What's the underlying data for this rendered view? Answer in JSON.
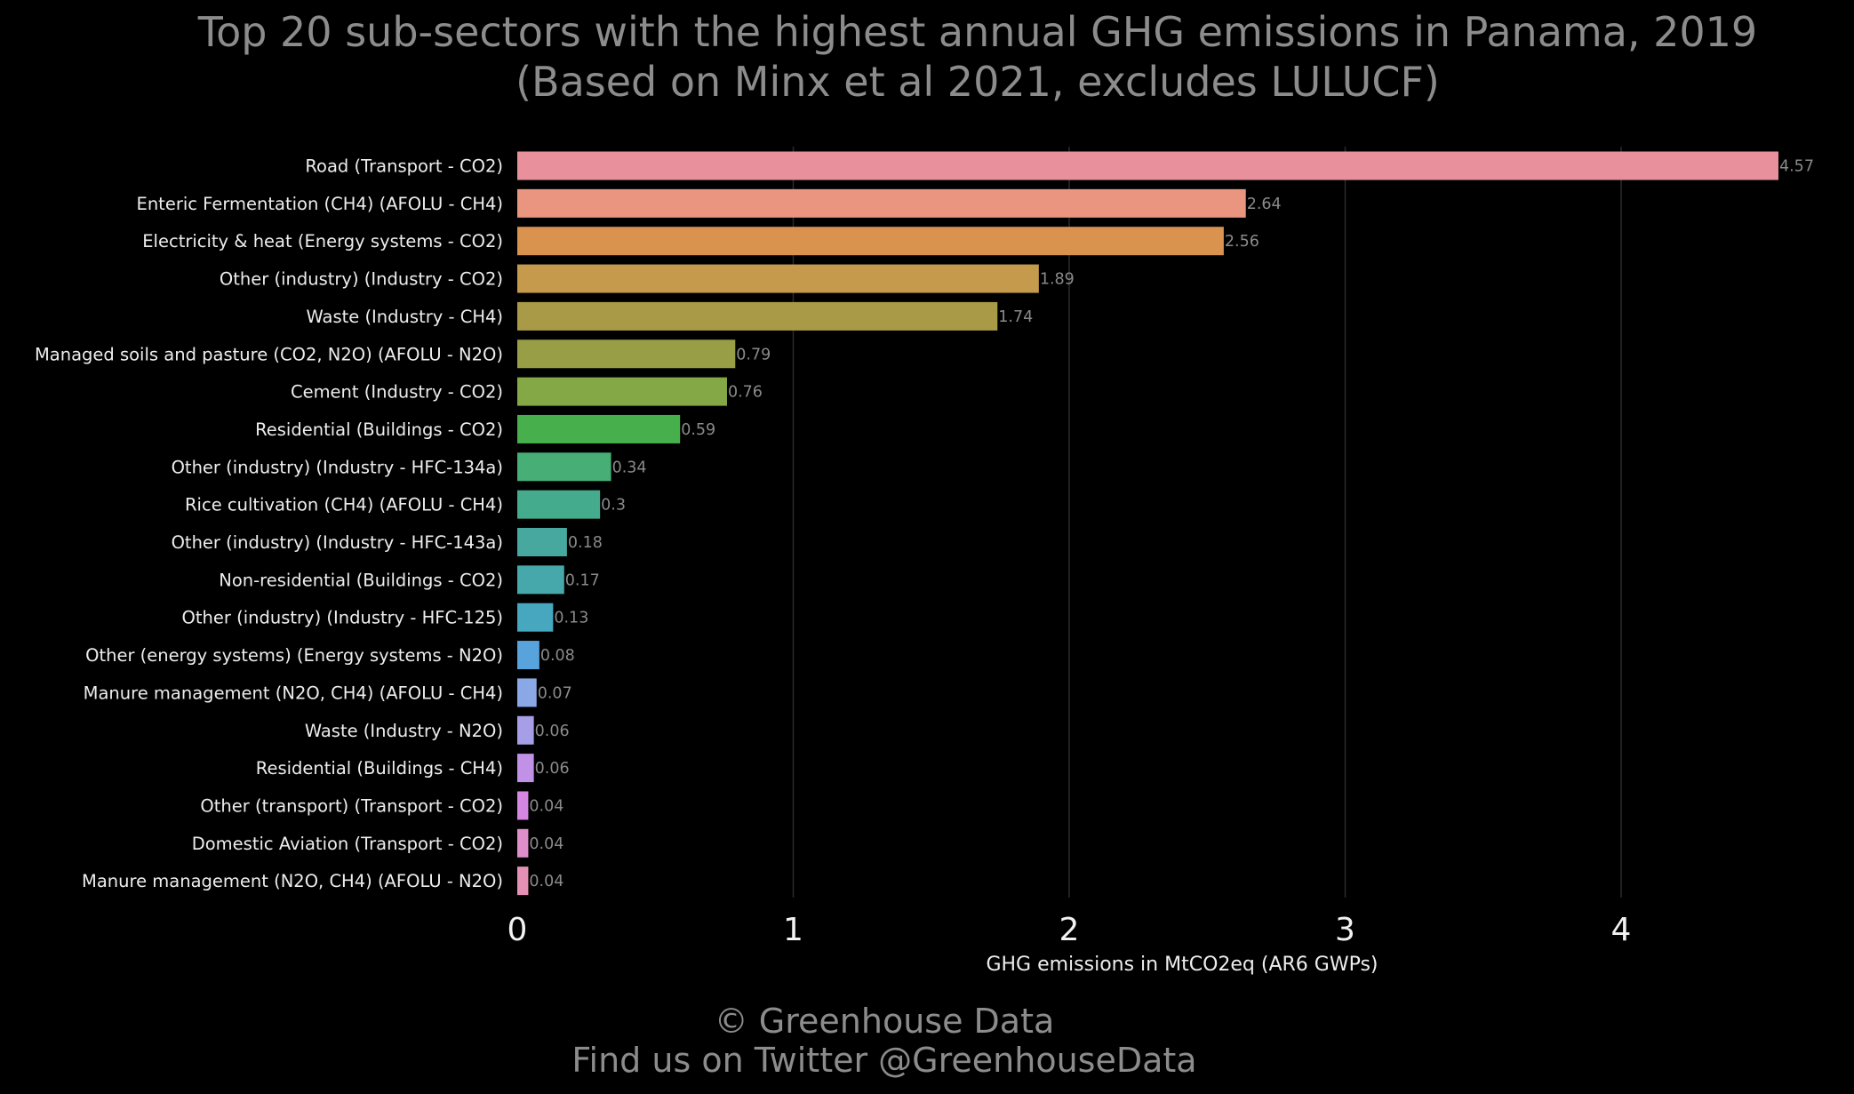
{
  "chart_data": {
    "type": "bar",
    "orientation": "horizontal",
    "title": "Top 20 sub-sectors with the highest annual GHG emissions in Panama, 2019",
    "subtitle": "(Based on Minx et al 2021, excludes LULUCF)",
    "xlabel": "GHG emissions in MtCO2eq (AR6 GWPs)",
    "ylabel": "",
    "xlim": [
      0,
      4.75
    ],
    "xticks": [
      0,
      1,
      2,
      3,
      4
    ],
    "grid": "vertical",
    "categories": [
      "Road (Transport - CO2)",
      "Enteric Fermentation (CH4) (AFOLU - CH4)",
      "Electricity & heat (Energy systems - CO2)",
      "Other (industry) (Industry - CO2)",
      "Waste (Industry - CH4)",
      "Managed soils and pasture (CO2, N2O) (AFOLU - N2O)",
      "Cement (Industry - CO2)",
      "Residential (Buildings - CO2)",
      "Other (industry) (Industry - HFC-134a)",
      "Rice cultivation (CH4) (AFOLU - CH4)",
      "Other (industry) (Industry - HFC-143a)",
      "Non-residential (Buildings - CO2)",
      "Other (industry) (Industry - HFC-125)",
      "Other (energy systems) (Energy systems - N2O)",
      "Manure management (N2O, CH4) (AFOLU - CH4)",
      "Waste (Industry - N2O)",
      "Residential (Buildings - CH4)",
      "Other (transport) (Transport - CO2)",
      "Domestic Aviation (Transport - CO2)",
      "Manure management (N2O, CH4) (AFOLU - N2O)"
    ],
    "values": [
      4.57,
      2.64,
      2.56,
      1.89,
      1.74,
      0.79,
      0.76,
      0.59,
      0.34,
      0.3,
      0.18,
      0.17,
      0.13,
      0.08,
      0.07,
      0.06,
      0.06,
      0.04,
      0.04,
      0.04
    ],
    "value_labels": [
      "4.57",
      "2.64",
      "2.56",
      "1.89",
      "1.74",
      "0.79",
      "0.76",
      "0.59",
      "0.34",
      "0.3",
      "0.18",
      "0.17",
      "0.13",
      "0.08",
      "0.07",
      "0.06",
      "0.06",
      "0.04",
      "0.04",
      "0.04"
    ],
    "colors": [
      "#e8909b",
      "#e99580",
      "#d9934f",
      "#c59a4c",
      "#a89a46",
      "#989e45",
      "#84a845",
      "#47b04c",
      "#47ae76",
      "#44ab8d",
      "#46a89e",
      "#47a8ab",
      "#46a7bf",
      "#59a3dc",
      "#8aa7e6",
      "#a79ee8",
      "#c091e6",
      "#d486e2",
      "#de8fc9",
      "#e591b5"
    ]
  },
  "footer": {
    "copyright": "© Greenhouse Data",
    "twitter": "Find us on Twitter @GreenhouseData"
  }
}
